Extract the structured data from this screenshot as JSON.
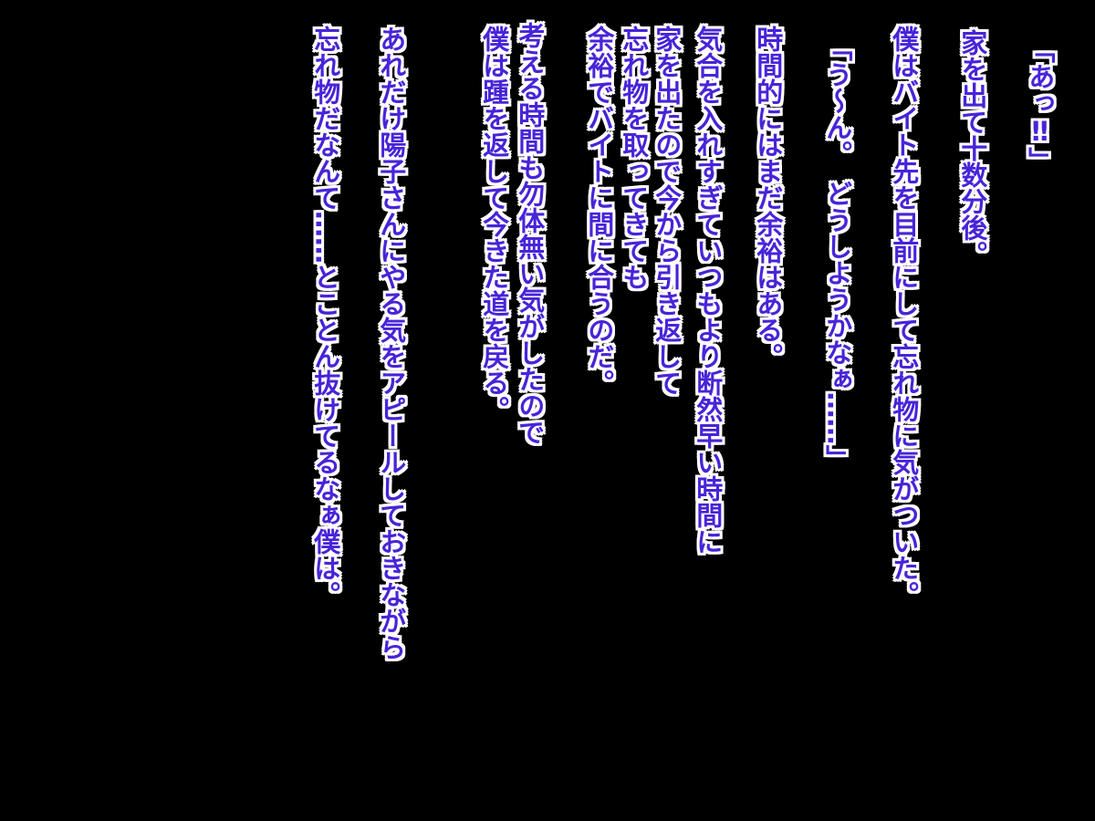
{
  "scene": {
    "type": "visual-novel-narration-screen",
    "background_color": "#000000",
    "text_fill_color": "#4824d8",
    "text_outline_color": "#ffffff"
  },
  "columns": [
    {
      "text": "「あっ‼」"
    },
    {
      "text": "家を出て十数分後。"
    },
    {
      "text": "僕はバイト先を目前にして忘れ物に気がついた。"
    },
    {
      "text": "「う〜ん。　どうしようかなぁ……」"
    },
    {
      "text": "時間的にはまだ余裕はある。"
    },
    {
      "text": "気合を入れすぎていつもより断然早い時間に"
    },
    {
      "text": "家を出たので今から引き返して"
    },
    {
      "text": "忘れ物を取ってきても"
    },
    {
      "text": "余裕でバイトに間に合うのだ。"
    },
    {
      "text": "考える時間も勿体無い気がしたので"
    },
    {
      "text": "僕は踵を返して今きた道を戻る。"
    },
    {
      "text": "あれだけ陽子さんにやる気をアピールしておきながら"
    },
    {
      "text": "忘れ物だなんて……とことん抜けてるなぁ僕は。"
    }
  ]
}
